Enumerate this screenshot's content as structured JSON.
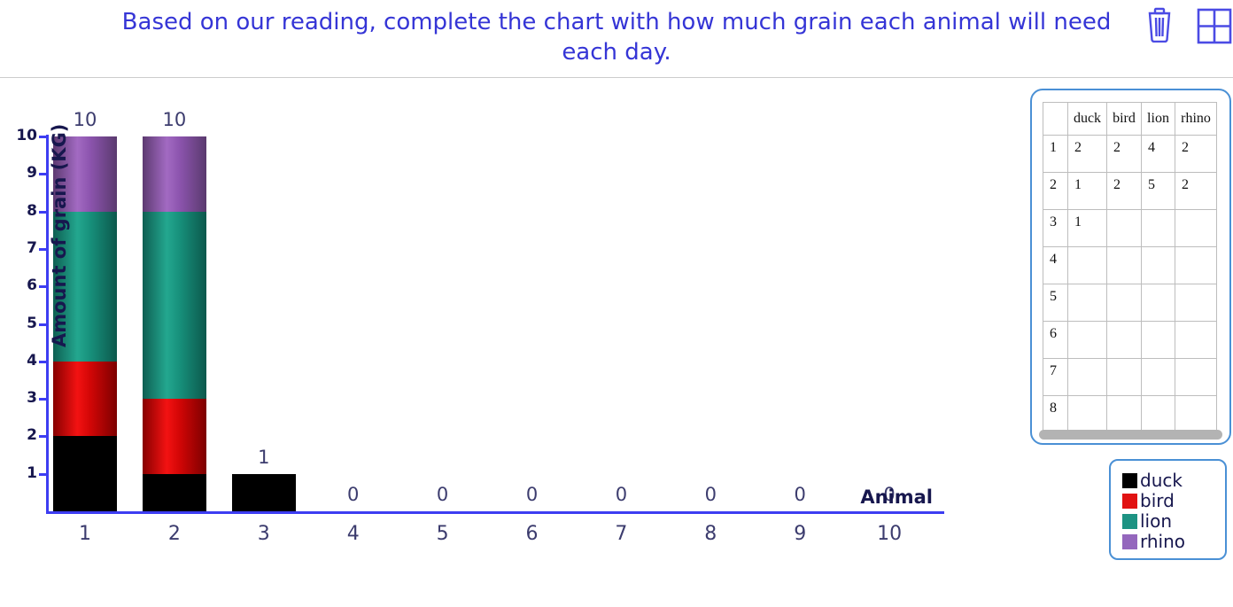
{
  "header": {
    "title": "Based on our reading, complete the chart with how much grain each animal will need each day.",
    "title_color": "#3535d6",
    "icons": {
      "trash": "trash-icon",
      "grid": "grid-icon"
    },
    "icon_color": "#4b4be4"
  },
  "chart": {
    "y_axis_title": "Amount of grain (KG)",
    "x_axis_title": "Animal",
    "y_ticks": [
      "1",
      "2",
      "3",
      "4",
      "5",
      "6",
      "7",
      "8",
      "9",
      "10"
    ],
    "x_ticks": [
      "1",
      "2",
      "3",
      "4",
      "5",
      "6",
      "7",
      "8",
      "9",
      "10"
    ],
    "bar_value_labels": [
      "10",
      "10",
      "1",
      "0",
      "0",
      "0",
      "0",
      "0",
      "0",
      "0"
    ],
    "axis_color": "#3d3df2"
  },
  "chart_data": {
    "type": "bar",
    "stacked": true,
    "categories": [
      "1",
      "2",
      "3",
      "4",
      "5",
      "6",
      "7",
      "8",
      "9",
      "10"
    ],
    "series": [
      {
        "name": "duck",
        "color": "#000000",
        "values": [
          2,
          1,
          1,
          0,
          0,
          0,
          0,
          0,
          0,
          0
        ]
      },
      {
        "name": "bird",
        "color": "#e11212",
        "values": [
          2,
          2,
          0,
          0,
          0,
          0,
          0,
          0,
          0,
          0
        ]
      },
      {
        "name": "lion",
        "color": "#1d9383",
        "values": [
          4,
          5,
          0,
          0,
          0,
          0,
          0,
          0,
          0,
          0
        ]
      },
      {
        "name": "rhino",
        "color": "#9467bd",
        "values": [
          2,
          2,
          0,
          0,
          0,
          0,
          0,
          0,
          0,
          0
        ]
      }
    ],
    "totals": [
      10,
      10,
      1,
      0,
      0,
      0,
      0,
      0,
      0,
      0
    ],
    "title": "",
    "xlabel": "Animal",
    "ylabel": "Amount of grain (KG)",
    "ylim": [
      0,
      10
    ],
    "grid": false,
    "legend_position": "bottom-right"
  },
  "table": {
    "columns": [
      "",
      "duck",
      "bird",
      "lion",
      "rhino"
    ],
    "rows": [
      {
        "label": "1",
        "cells": [
          "2",
          "2",
          "4",
          "2"
        ]
      },
      {
        "label": "2",
        "cells": [
          "1",
          "2",
          "5",
          "2"
        ]
      },
      {
        "label": "3",
        "cells": [
          "1",
          "",
          "",
          ""
        ]
      },
      {
        "label": "4",
        "cells": [
          "",
          "",
          "",
          ""
        ]
      },
      {
        "label": "5",
        "cells": [
          "",
          "",
          "",
          ""
        ]
      },
      {
        "label": "6",
        "cells": [
          "",
          "",
          "",
          ""
        ]
      },
      {
        "label": "7",
        "cells": [
          "",
          "",
          "",
          ""
        ]
      },
      {
        "label": "8",
        "cells": [
          "",
          "",
          "",
          ""
        ]
      }
    ]
  },
  "legend": {
    "items": [
      {
        "label": "duck",
        "color": "#000000"
      },
      {
        "label": "bird",
        "color": "#e11212"
      },
      {
        "label": "lion",
        "color": "#1d9383"
      },
      {
        "label": "rhino",
        "color": "#9467bd"
      }
    ]
  }
}
